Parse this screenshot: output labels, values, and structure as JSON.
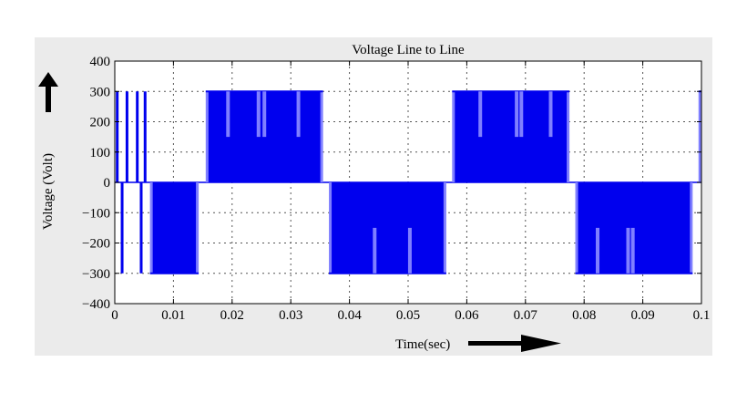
{
  "chart_data": {
    "type": "line",
    "title": "Voltage Line to Line",
    "xlabel": "Time(sec)",
    "ylabel": "Voltage (Volt)",
    "xlim": [
      0,
      0.1
    ],
    "ylim": [
      -400,
      400
    ],
    "x_ticks": [
      0,
      0.01,
      0.02,
      0.03,
      0.04,
      0.05,
      0.06,
      0.07,
      0.08,
      0.09,
      0.1
    ],
    "x_tick_labels": [
      "0",
      "0.01",
      "0.02",
      "0.03",
      "0.04",
      "0.05",
      "0.06",
      "0.07",
      "0.08",
      "0.09",
      "0.1"
    ],
    "y_ticks": [
      400,
      300,
      200,
      100,
      0,
      -100,
      -200,
      -300,
      -400
    ],
    "y_tick_labels": [
      "400",
      "300",
      "200",
      "100",
      "0",
      "−100",
      "−200",
      "−300",
      "−400"
    ],
    "grid": true,
    "series": [
      {
        "color": "#0000ee",
        "levels": [
          -300,
          0,
          300
        ],
        "pulses": [
          {
            "t_start": 0.0,
            "t_end": 0.0025,
            "pattern": "alternating",
            "values": [
              300,
              -300
            ]
          },
          {
            "t_start": 0.0035,
            "t_end": 0.0055,
            "pattern": "alternating",
            "values": [
              300,
              -300
            ]
          },
          {
            "t_start": 0.006,
            "t_end": 0.0143,
            "value": -300
          },
          {
            "t_start": 0.0155,
            "t_end": 0.0355,
            "value": 300
          },
          {
            "t_start": 0.0365,
            "t_end": 0.0565,
            "value": -300
          },
          {
            "t_start": 0.0575,
            "t_end": 0.0775,
            "value": 300
          },
          {
            "t_start": 0.0785,
            "t_end": 0.0985,
            "value": -300
          },
          {
            "t_start": 0.0995,
            "t_end": 0.1,
            "value": 300
          }
        ],
        "notches": [
          0.0193,
          0.0245,
          0.0255,
          0.0313,
          0.0443,
          0.0503,
          0.0623,
          0.0685,
          0.0693,
          0.0743,
          0.0823,
          0.0875,
          0.0883
        ]
      }
    ]
  },
  "annotations": {
    "y_arrow": "up-arrow-icon",
    "x_arrow": "right-arrow-icon"
  }
}
